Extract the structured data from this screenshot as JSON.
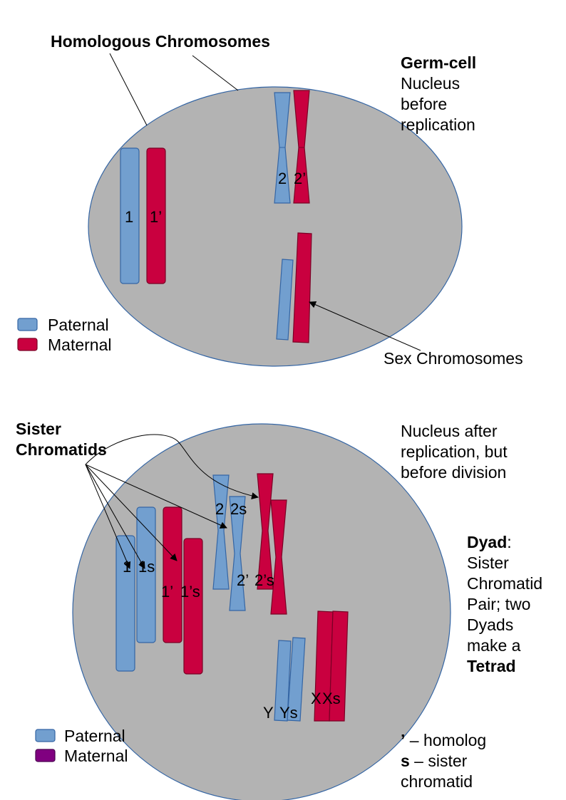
{
  "top": {
    "title": "Homologous Chromosomes",
    "germ_cell": "Germ-cell",
    "nucleus_lines": [
      "Nucleus",
      "before",
      "replication"
    ],
    "chrom_labels": {
      "c1": "1",
      "c1p": "1’",
      "c2": "2",
      "c2p": "2’"
    },
    "sex_label": "Sex Chromosomes",
    "legend": {
      "paternal": "Paternal",
      "maternal": "Maternal"
    },
    "colors": {
      "paternal": "#729fcf",
      "maternal": "#c9003f",
      "nucleus": "#b3b3b3"
    }
  },
  "bottom": {
    "sister_chromatids": [
      "Sister",
      "Chromatids"
    ],
    "nucleus_lines": [
      "Nucleus after",
      "replication, but",
      "before division"
    ],
    "chrom_labels": {
      "c1": "1",
      "c1s": "1s",
      "c1p": "1’",
      "c1ps": "1’s",
      "c2": "2",
      "c2s": "2s",
      "c2p": "2’",
      "c2ps": "2’s",
      "y": "Y",
      "ys": "Ys",
      "x": "X",
      "xs": "Xs"
    },
    "dyad": {
      "term": "Dyad",
      "colon": ":",
      "lines": [
        "Sister",
        "Chromatid",
        "Pair; two",
        "Dyads",
        "make a"
      ],
      "tetrad": "Tetrad"
    },
    "key": {
      "homolog_symbol": "’",
      "homolog_text": " – homolog",
      "sister_symbol": "s",
      "sister_text": " – sister",
      "sister_text2": "chromatid"
    },
    "legend": {
      "paternal": "Paternal",
      "maternal": "Maternal"
    },
    "colors": {
      "paternal": "#729fcf",
      "maternal_legend": "#800080"
    }
  }
}
